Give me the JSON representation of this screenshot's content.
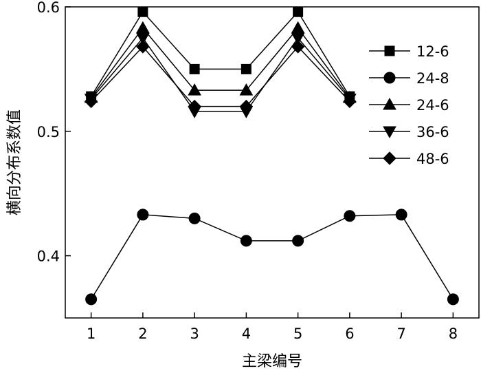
{
  "chart_data": {
    "type": "line",
    "title": "",
    "xlabel": "主梁编号",
    "ylabel": "横向分布系数值",
    "xlim": [
      0.5,
      8.5
    ],
    "ylim": [
      0.35,
      0.6
    ],
    "xticks": [
      1,
      2,
      3,
      4,
      5,
      6,
      7,
      8
    ],
    "yticks": [
      0.4,
      0.5,
      0.6
    ],
    "ytick_labels": [
      "0.4",
      "0.5",
      "0.6"
    ],
    "grid": false,
    "legend_position": "top-right",
    "series": [
      {
        "name": "12-6",
        "marker": "square",
        "x": [
          1,
          2,
          3,
          4,
          5,
          6
        ],
        "values": [
          0.528,
          0.596,
          0.55,
          0.55,
          0.596,
          0.528
        ]
      },
      {
        "name": "24-8",
        "marker": "circle",
        "x": [
          1,
          2,
          3,
          4,
          5,
          6,
          7,
          8
        ],
        "values": [
          0.365,
          0.433,
          0.43,
          0.412,
          0.412,
          0.432,
          0.433,
          0.365
        ]
      },
      {
        "name": "24-6",
        "marker": "triangle-up",
        "x": [
          1,
          2,
          3,
          4,
          5,
          6
        ],
        "values": [
          0.527,
          0.583,
          0.533,
          0.533,
          0.583,
          0.527
        ]
      },
      {
        "name": "36-6",
        "marker": "triangle-down",
        "x": [
          1,
          2,
          3,
          4,
          5,
          6
        ],
        "values": [
          0.526,
          0.575,
          0.516,
          0.516,
          0.575,
          0.526
        ]
      },
      {
        "name": "48-6",
        "marker": "diamond",
        "x": [
          1,
          2,
          3,
          4,
          5,
          6
        ],
        "values": [
          0.524,
          0.568,
          0.52,
          0.52,
          0.568,
          0.524
        ]
      }
    ]
  }
}
